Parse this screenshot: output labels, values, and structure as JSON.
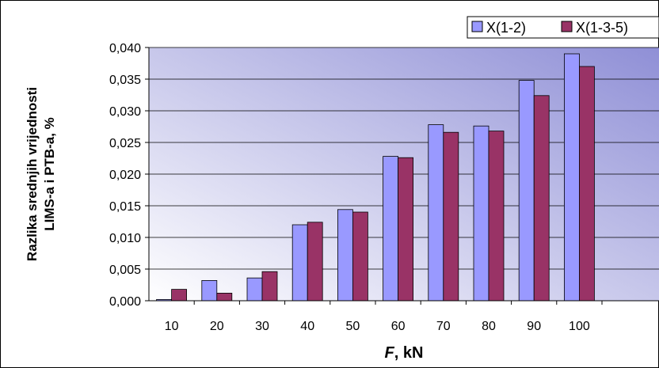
{
  "chart_data": {
    "type": "bar",
    "categories": [
      "10",
      "20",
      "30",
      "40",
      "50",
      "60",
      "70",
      "80",
      "90",
      "100"
    ],
    "series": [
      {
        "name": "X(1-2)",
        "values": [
          0.0002,
          0.0032,
          0.0036,
          0.012,
          0.0144,
          0.0228,
          0.0278,
          0.0276,
          0.0348,
          0.039
        ],
        "color": "#9999ff"
      },
      {
        "name": "X(1-3-5)",
        "values": [
          0.0018,
          0.0012,
          0.0046,
          0.0124,
          0.014,
          0.0226,
          0.0266,
          0.0268,
          0.0324,
          0.037
        ],
        "color": "#993366"
      }
    ],
    "ylim": [
      0,
      0.04
    ],
    "yticks": [
      "0,000",
      "0,005",
      "0,010",
      "0,015",
      "0,020",
      "0,025",
      "0,030",
      "0,035",
      "0,040"
    ],
    "ylabel_line1": "Razlika srednjih vrijednosti",
    "ylabel_line2": "LIMS-a i PTB-a, %",
    "xlabel_var": "F",
    "xlabel_unit": ",  kN",
    "grid": true,
    "legend_position": "top-right",
    "plot_gradient": [
      "#8f8fd6",
      "#ffffff"
    ]
  }
}
